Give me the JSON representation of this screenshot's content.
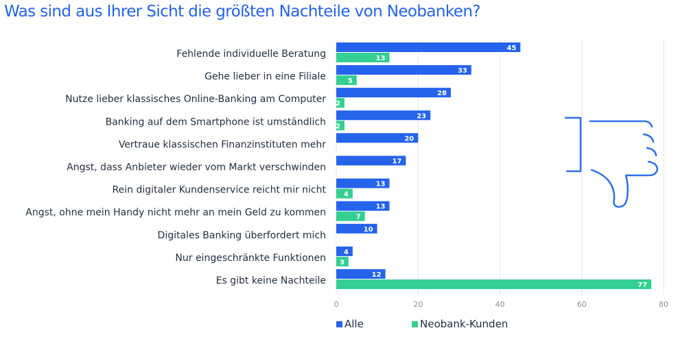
{
  "title": "Was sind aus Ihrer Sicht die größten Nachteile von Neobanken?",
  "colors": {
    "alle": "#2563eb",
    "neobank": "#34cf92",
    "icon": "#2f6fe6",
    "grid": "#e6e6e6"
  },
  "legend": [
    {
      "name": "Alle",
      "color": "#2563eb"
    },
    {
      "name": "Neobank-Kunden",
      "color": "#34cf92"
    }
  ],
  "icon": "thumbs-down-icon",
  "chart_data": {
    "type": "bar",
    "orientation": "horizontal",
    "title": "Was sind aus Ihrer Sicht die größten Nachteile von Neobanken?",
    "xlabel": "",
    "ylabel": "",
    "xlim": [
      0,
      80
    ],
    "xticks": [
      0,
      20,
      40,
      60,
      80
    ],
    "grid": true,
    "legend_position": "bottom",
    "categories": [
      "Fehlende individuelle Beratung",
      "Gehe lieber in eine Filiale",
      "Nutze lieber klassisches Online-Banking am Computer",
      "Banking auf dem Smartphone ist umständlich",
      "Vertraue klassischen Finanzinstituten mehr",
      "Angst, dass Anbieter wieder vom Markt verschwinden",
      "Rein digitaler Kundenservice reicht mir nicht",
      "Angst, ohne mein Handy nicht mehr an mein Geld zu kommen",
      "Digitales Banking überfordert mich",
      "Nur eingeschränkte Funktionen",
      "Es gibt keine Nachteile"
    ],
    "series": [
      {
        "name": "Alle",
        "values": [
          45,
          33,
          28,
          23,
          20,
          17,
          13,
          13,
          10,
          4,
          12
        ]
      },
      {
        "name": "Neobank-Kunden",
        "values": [
          13,
          5,
          2,
          2,
          null,
          null,
          4,
          7,
          null,
          3,
          77
        ]
      }
    ]
  }
}
